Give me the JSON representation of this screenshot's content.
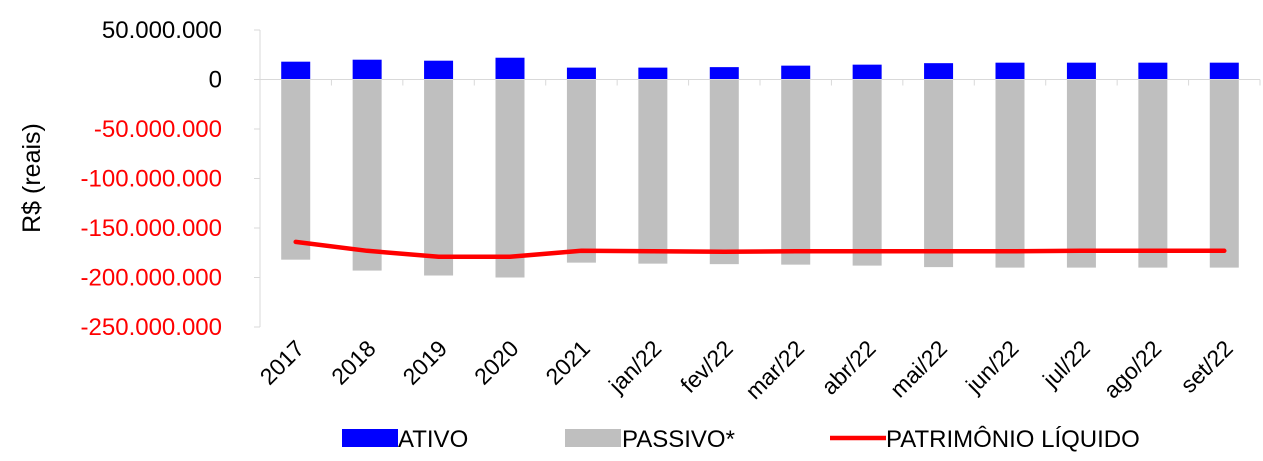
{
  "chart_data": {
    "type": "bar",
    "title": "",
    "xlabel": "",
    "ylabel": "R$ (reais)",
    "ylim": [
      -250000000,
      50000000
    ],
    "yticks": [
      50000000,
      0,
      -50000000,
      -100000000,
      -150000000,
      -200000000,
      -250000000
    ],
    "ytick_labels": [
      "50.000.000",
      "0",
      "-50.000.000",
      "-100.000.000",
      "-150.000.000",
      "-200.000.000",
      "-250.000.000"
    ],
    "negative_tick_color": "#ff0000",
    "grid": false,
    "legend_position": "bottom",
    "categories": [
      "2017",
      "2018",
      "2019",
      "2020",
      "2021",
      "jan/22",
      "fev/22",
      "mar/22",
      "abr/22",
      "mai/22",
      "jun/22",
      "jul/22",
      "ago/22",
      "set/22"
    ],
    "series": [
      {
        "name": "ATIVO",
        "type": "bar",
        "color": "#0000ff",
        "values": [
          18000000,
          20000000,
          19000000,
          22000000,
          12000000,
          12000000,
          12500000,
          14000000,
          15000000,
          16500000,
          17000000,
          17000000,
          17000000,
          17000000
        ]
      },
      {
        "name": "PASSIVO*",
        "type": "bar",
        "color": "#bfbfbf",
        "values": [
          -182000000,
          -193000000,
          -198000000,
          -200000000,
          -185000000,
          -186000000,
          -186500000,
          -187000000,
          -188000000,
          -189500000,
          -190000000,
          -190000000,
          -190000000,
          -190000000
        ]
      },
      {
        "name": "PATRIMÔNIO LÍQUIDO",
        "type": "line",
        "color": "#ff0000",
        "values": [
          -164000000,
          -173000000,
          -179000000,
          -179000000,
          -173000000,
          -173500000,
          -174000000,
          -173500000,
          -173500000,
          -173500000,
          -173500000,
          -173000000,
          -173000000,
          -173000000
        ]
      }
    ]
  }
}
